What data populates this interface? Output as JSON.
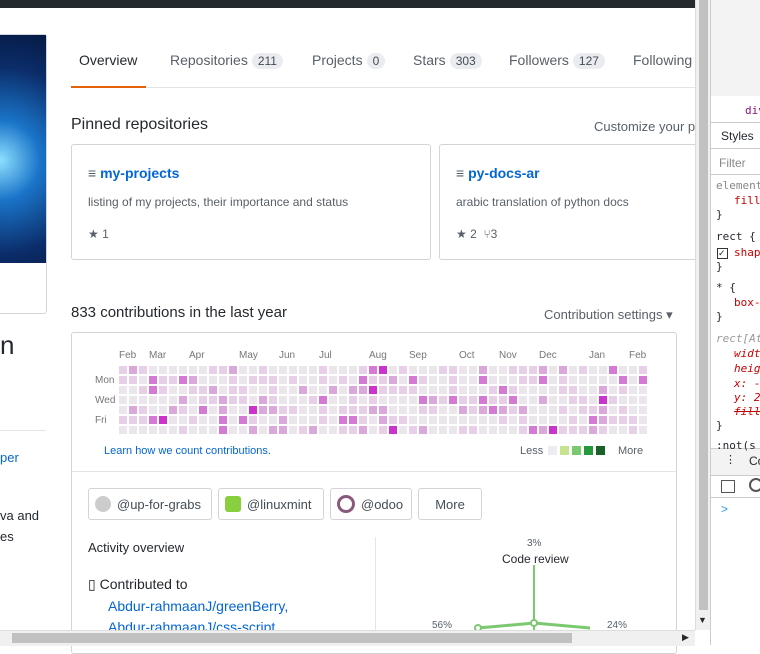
{
  "tabs": [
    {
      "label": "Overview"
    },
    {
      "label": "Repositories",
      "count": 211
    },
    {
      "label": "Projects",
      "count": 0
    },
    {
      "label": "Stars",
      "count": 303
    },
    {
      "label": "Followers",
      "count": 127
    },
    {
      "label": "Following"
    }
  ],
  "sidebar": {
    "name_fragment": "n",
    "link_fragment": "per",
    "bio_line1": "va and",
    "bio_line2": "es"
  },
  "pinned": {
    "title": "Pinned repositories",
    "customize": "Customize your p",
    "repos": [
      {
        "name": "my-projects",
        "description": "listing of my projects, their importance and status",
        "stars": 1
      },
      {
        "name": "py-docs-ar",
        "description": "arabic translation of python docs",
        "stars": 2,
        "forks": 3
      }
    ]
  },
  "contributions": {
    "heading": "833 contributions in the last year",
    "settings": "Contribution settings ▾",
    "months": [
      "Feb",
      "Mar",
      "Apr",
      "May",
      "Jun",
      "Jul",
      "Aug",
      "Sep",
      "Oct",
      "Nov",
      "Dec",
      "Jan",
      "Feb"
    ],
    "days": [
      "Mon",
      "Wed",
      "Fri"
    ],
    "learn": "Learn how we count contributions.",
    "less": "Less",
    "more": "More"
  },
  "orgs": [
    "@up-for-grabs",
    "@linuxmint",
    "@odoo"
  ],
  "orgs_more": "More",
  "activity": {
    "title": "Activity overview",
    "contributed": "Contributed to",
    "links": [
      "Abdur-rahmaanJ/greenBerry,",
      "Abdur-rahmaanJ/css-script,"
    ],
    "code_review_pct": "3%",
    "code_review": "Code review",
    "left_pct": "56%",
    "right_pct": "24%"
  },
  "devtools": {
    "crumb": "div",
    "tab": "Styles",
    "filter": "Filter",
    "lines": [
      "element",
      "fill",
      "}",
      "rect {",
      "shap",
      "}",
      "* {",
      "box-",
      "}",
      "rect[At",
      "widt",
      "heig",
      "x: -",
      "y: 2",
      "fill",
      "}",
      ":not(s"
    ],
    "console": "Co",
    "prompt": ">"
  }
}
